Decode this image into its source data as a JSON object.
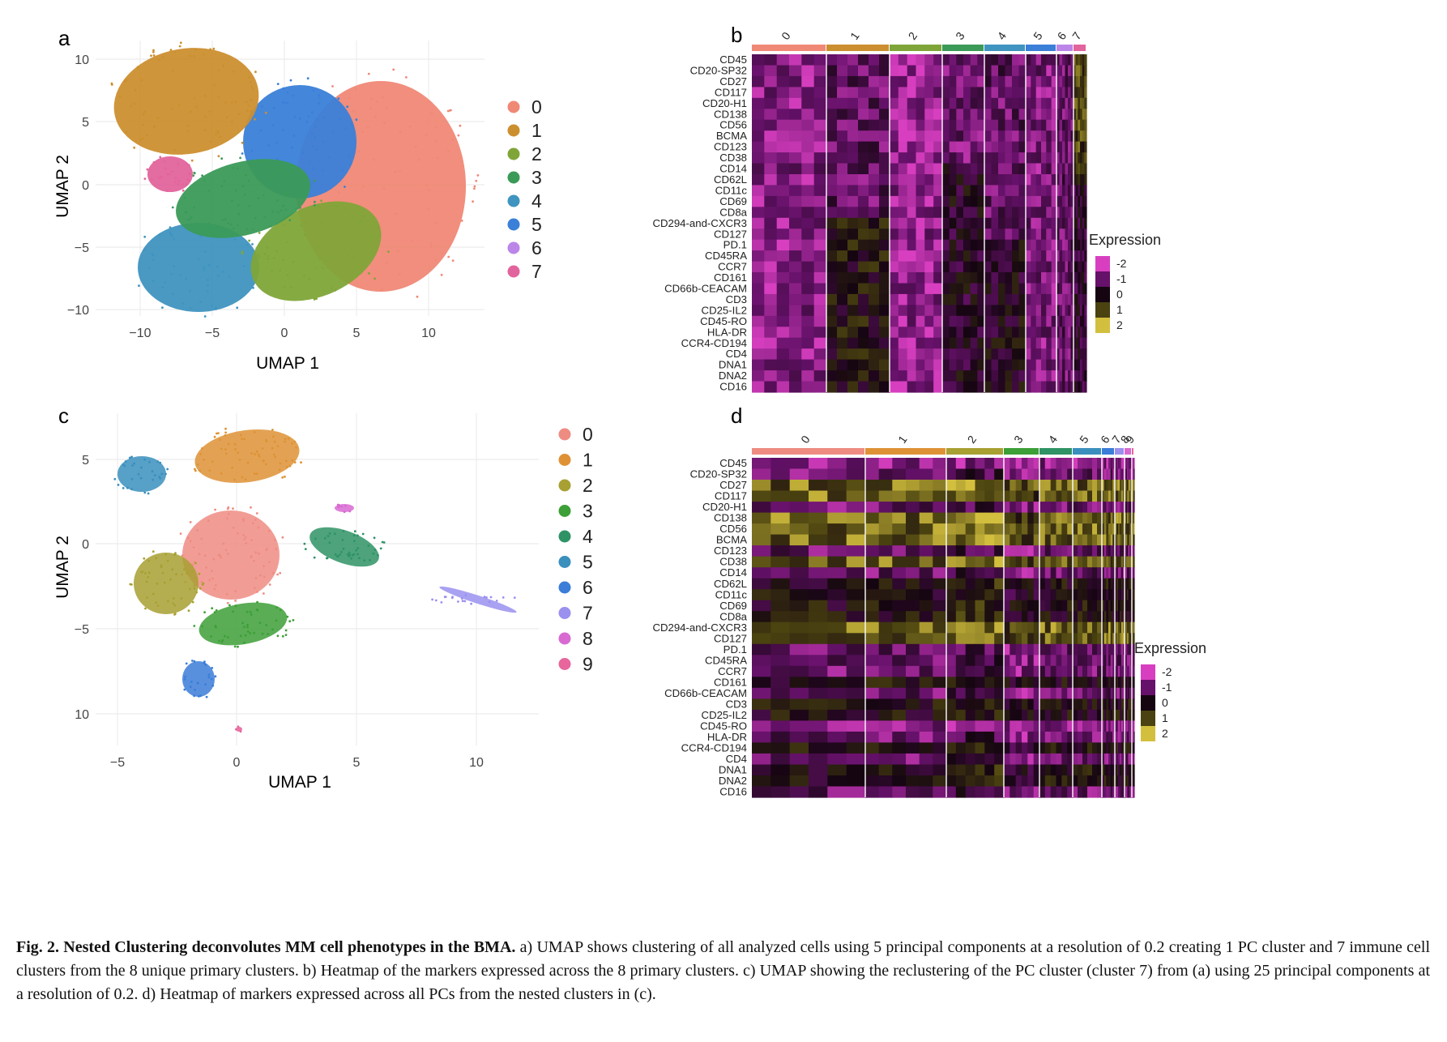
{
  "figure": {
    "panels": [
      {
        "letter": "a",
        "xlabel": "UMAP 1",
        "ylabel": "UMAP 2",
        "xticks": [
          "−10",
          "−5",
          "0",
          "5",
          "10"
        ],
        "yticks": [
          "10",
          "5",
          "0",
          "−5",
          "−10"
        ],
        "legend": [
          "0",
          "1",
          "2",
          "3",
          "4",
          "5",
          "6",
          "7"
        ]
      },
      {
        "letter": "b",
        "legend_title": "Expression",
        "scale": [
          "-2",
          "-1",
          "0",
          "1",
          "2"
        ],
        "clusters": [
          "0",
          "1",
          "2",
          "3",
          "4",
          "5",
          "6",
          "7"
        ],
        "markers": [
          "CD45",
          "CD20-SP32",
          "CD27",
          "CD117",
          "CD20-H1",
          "CD138",
          "CD56",
          "BCMA",
          "CD123",
          "CD38",
          "CD14",
          "CD62L",
          "CD11c",
          "CD69",
          "CD8a",
          "CD294-and-CXCR3",
          "CD127",
          "PD.1",
          "CD45RA",
          "CCR7",
          "CD161",
          "CD66b-CEACAM",
          "CD3",
          "CD25-IL2",
          "CD45-RO",
          "HLA-DR",
          "CCR4-CD194",
          "CD4",
          "DNA1",
          "DNA2",
          "CD16"
        ]
      },
      {
        "letter": "c",
        "xlabel": "UMAP 1",
        "ylabel": "UMAP 2",
        "xticks": [
          "−5",
          "0",
          "5",
          "10"
        ],
        "yticks": [
          "5",
          "0",
          "−5",
          "10"
        ],
        "legend": [
          "0",
          "1",
          "2",
          "3",
          "4",
          "5",
          "6",
          "7",
          "8",
          "9"
        ]
      },
      {
        "letter": "d",
        "legend_title": "Expression",
        "scale": [
          "-2",
          "-1",
          "0",
          "1",
          "2"
        ],
        "clusters": [
          "0",
          "1",
          "2",
          "3",
          "4",
          "5",
          "6",
          "7",
          "8",
          "9"
        ],
        "markers": [
          "CD45",
          "CD20-SP32",
          "CD27",
          "CD117",
          "CD20-H1",
          "CD138",
          "CD56",
          "BCMA",
          "CD123",
          "CD38",
          "CD14",
          "CD62L",
          "CD11c",
          "CD69",
          "CD8a",
          "CD294-and-CXCR3",
          "CD127",
          "PD.1",
          "CD45RA",
          "CCR7",
          "CD161",
          "CD66b-CEACAM",
          "CD3",
          "CD25-IL2",
          "CD45-RO",
          "HLA-DR",
          "CCR4-CD194",
          "CD4",
          "DNA1",
          "DNA2",
          "CD16"
        ]
      }
    ],
    "colors": {
      "a": [
        "#f08876",
        "#cc8f2f",
        "#7fa538",
        "#3b9a58",
        "#3f94c0",
        "#3a7fd8",
        "#bb86e8",
        "#e2649c"
      ],
      "c": [
        "#ee8c82",
        "#de9235",
        "#a8a032",
        "#3d9f37",
        "#2f9365",
        "#3a8fbd",
        "#3b7dd8",
        "#9a90ee",
        "#d86ad2",
        "#e7679c"
      ],
      "heat": [
        "#d83fc0",
        "#66116a",
        "#150511",
        "#4a4210",
        "#d3bf3e"
      ]
    },
    "caption": {
      "label": "Fig. 2.",
      "title": "Nested Clustering deconvolutes MM cell phenotypes in the BMA.",
      "text": "a) UMAP shows clustering of all analyzed cells using 5 principal components at a resolution of 0.2 creating 1 PC cluster and 7 immune cell clusters from the 8 unique primary clusters. b) Heatmap of the markers expressed across the 8 primary clusters. c) UMAP showing the reclustering of the PC cluster (cluster 7) from (a) using 25 principal components at a resolution of 0.2. d) Heatmap of markers expressed across all PCs from the nested clusters in (c)."
    }
  }
}
